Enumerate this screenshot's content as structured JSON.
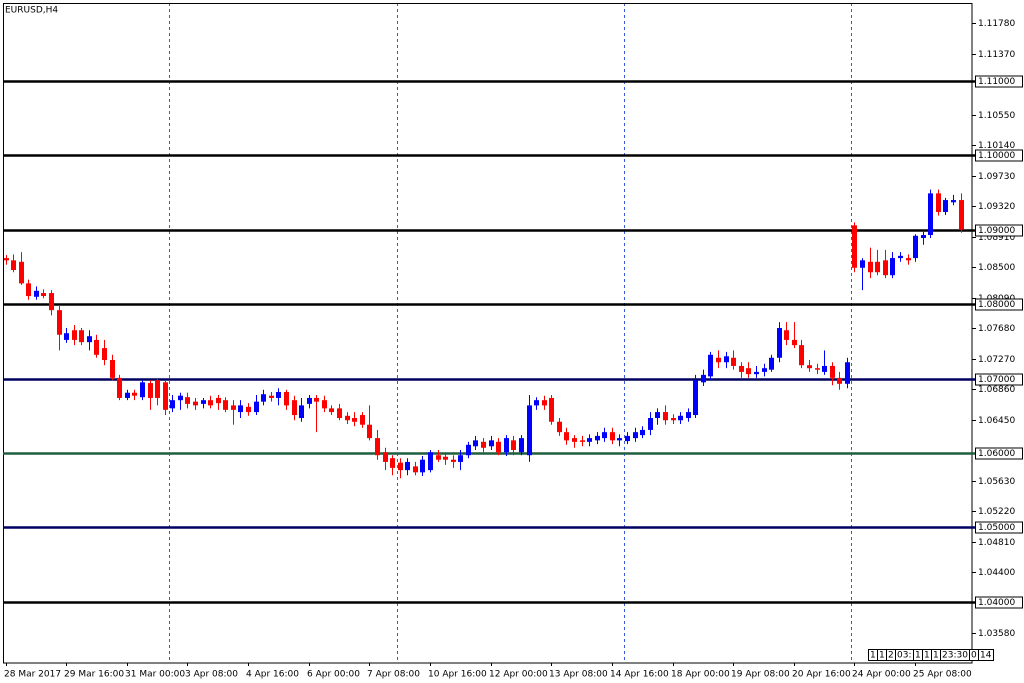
{
  "chart_data": {
    "type": "candlestick",
    "title": "EURUSD,H4",
    "categories": [
      "28 Mar 2017",
      null,
      null,
      null,
      null,
      null,
      null,
      null,
      "29 Mar 16:00",
      null,
      null,
      null,
      null,
      null,
      null,
      null,
      "31 Mar 00:00",
      null,
      null,
      null,
      null,
      null,
      null,
      null,
      "3 Apr 08:00",
      null,
      null,
      null,
      null,
      null,
      null,
      null,
      "4 Apr 16:00",
      null,
      null,
      null,
      null,
      null,
      null,
      null,
      "6 Apr 00:00",
      null,
      null,
      null,
      null,
      null,
      null,
      null,
      "7 Apr 08:00",
      null,
      null,
      null,
      null,
      null,
      null,
      null,
      "10 Apr 16:00",
      null,
      null,
      null,
      null,
      null,
      null,
      null,
      "12 Apr 00:00",
      null,
      null,
      null,
      null,
      null,
      null,
      null,
      "13 Apr 08:00",
      null,
      null,
      null,
      null,
      null,
      null,
      null,
      "14 Apr 16:00",
      null,
      null,
      null,
      null,
      null,
      null,
      null,
      "18 Apr 00:00",
      null,
      null,
      null,
      null,
      null,
      null,
      null,
      "19 Apr 08:00",
      null,
      null,
      null,
      null,
      null,
      null,
      null,
      "20 Apr 16:00",
      null,
      null,
      null,
      null,
      null,
      null,
      null,
      "24 Apr 00:00",
      null,
      null,
      null,
      null,
      null,
      null,
      null,
      "25 Apr 08:00",
      null,
      null,
      null,
      null,
      null,
      null
    ],
    "open": [
      1.0862,
      1.0859,
      1.0857,
      1.0828,
      1.081,
      1.0815,
      1.0815,
      1.0792,
      1.0752,
      1.0765,
      1.0765,
      1.0749,
      1.0752,
      1.0741,
      1.0725,
      1.0701,
      1.0674,
      1.0681,
      1.0675,
      1.0694,
      1.0698,
      1.0695,
      1.066,
      1.0671,
      1.0675,
      1.0669,
      1.0666,
      1.0671,
      1.0674,
      1.0671,
      1.0664,
      1.0655,
      1.0662,
      1.0655,
      1.0669,
      1.0677,
      1.0674,
      1.0682,
      1.0671,
      1.0647,
      1.0666,
      1.0674,
      1.0671,
      1.066,
      1.066,
      1.065,
      1.0647,
      1.0651,
      1.0638,
      1.062,
      1.0601,
      1.0593,
      1.0587,
      1.0577,
      1.0582,
      1.0574,
      1.0577,
      1.0597,
      1.0595,
      1.0591,
      1.0588,
      1.0597,
      1.0609,
      1.0615,
      1.0609,
      1.0615,
      1.0601,
      1.0617,
      1.0601,
      1.0597,
      1.0664,
      1.0671,
      1.0674,
      1.0642,
      1.0628,
      1.062,
      1.0617,
      1.0615,
      1.0617,
      1.062,
      1.0628,
      1.0617,
      1.0616,
      1.062,
      1.0624,
      1.0631,
      1.0647,
      1.0655,
      1.0647,
      1.0644,
      1.0647,
      1.0651,
      1.0695,
      1.0703,
      1.0728,
      1.0722,
      1.0728,
      1.0717,
      1.0714,
      1.0706,
      1.0709,
      1.0712,
      1.0728,
      1.0765,
      1.0752,
      1.0745,
      1.0718,
      1.0714,
      1.0709,
      1.0717,
      1.0701,
      1.0693,
      1.0906,
      1.0849,
      1.0857,
      1.0857,
      1.0859,
      1.0839,
      1.0862,
      1.0862,
      1.0862,
      1.0889,
      1.0893,
      1.0949,
      1.0924,
      1.0937,
      1.094
    ],
    "high": [
      1.0866,
      1.0867,
      1.087,
      1.0833,
      1.0824,
      1.082,
      1.0819,
      1.0799,
      1.0768,
      1.0772,
      1.0768,
      1.0765,
      1.0759,
      1.0752,
      1.0732,
      1.0705,
      1.0685,
      1.0685,
      1.0698,
      1.0698,
      1.0701,
      1.0698,
      1.0678,
      1.0681,
      1.0681,
      1.0674,
      1.0674,
      1.0677,
      1.0678,
      1.0675,
      1.0671,
      1.0671,
      1.0667,
      1.0678,
      1.0685,
      1.0682,
      1.0687,
      1.0685,
      1.0677,
      1.0674,
      1.0678,
      1.0678,
      1.0677,
      1.0664,
      1.0666,
      1.0655,
      1.0655,
      1.0655,
      1.0664,
      1.0631,
      1.0607,
      1.0597,
      1.0593,
      1.0593,
      1.0588,
      1.0596,
      1.0604,
      1.0604,
      1.0601,
      1.0597,
      1.0604,
      1.0615,
      1.0623,
      1.062,
      1.0623,
      1.062,
      1.0624,
      1.0623,
      1.0624,
      1.0678,
      1.0675,
      1.0677,
      1.0678,
      1.0647,
      1.0634,
      1.0624,
      1.0623,
      1.0625,
      1.0628,
      1.0634,
      1.0634,
      1.0625,
      1.0628,
      1.0634,
      1.0636,
      1.0655,
      1.066,
      1.0664,
      1.0652,
      1.0655,
      1.066,
      1.0705,
      1.0712,
      1.0736,
      1.0738,
      1.0736,
      1.0738,
      1.0722,
      1.0722,
      1.0717,
      1.072,
      1.0732,
      1.0776,
      1.0776,
      1.0776,
      1.0752,
      1.0725,
      1.072,
      1.0738,
      1.0722,
      1.0709,
      1.0728,
      1.091,
      1.0862,
      1.0876,
      1.0873,
      1.0873,
      1.087,
      1.087,
      1.0867,
      1.0894,
      1.09,
      1.0954,
      1.0954,
      1.0943,
      1.0947,
      1.0949
    ],
    "low": [
      1.0853,
      1.0843,
      1.0826,
      1.0806,
      1.0806,
      1.0808,
      1.0785,
      1.0738,
      1.0748,
      1.0745,
      1.0745,
      1.0738,
      1.0728,
      1.0718,
      1.0698,
      1.0671,
      1.0671,
      1.0671,
      1.0671,
      1.0658,
      1.0664,
      1.0651,
      1.0655,
      1.0658,
      1.066,
      1.0658,
      1.066,
      1.066,
      1.0658,
      1.0655,
      1.0638,
      1.0647,
      1.065,
      1.0651,
      1.0664,
      1.0669,
      1.0664,
      1.0658,
      1.0644,
      1.0642,
      1.066,
      1.0628,
      1.0655,
      1.0651,
      1.0644,
      1.0639,
      1.0636,
      1.0634,
      1.0617,
      1.0591,
      1.0577,
      1.057,
      1.0566,
      1.057,
      1.057,
      1.0569,
      1.0574,
      1.0588,
      1.0584,
      1.058,
      1.0577,
      1.0593,
      1.0604,
      1.0601,
      1.0604,
      1.0597,
      1.0596,
      1.0597,
      1.0597,
      1.0588,
      1.0658,
      1.0658,
      1.0638,
      1.0623,
      1.0611,
      1.0607,
      1.0609,
      1.0609,
      1.0612,
      1.0615,
      1.0612,
      1.0609,
      1.0612,
      1.0615,
      1.062,
      1.0624,
      1.0638,
      1.0638,
      1.0639,
      1.0639,
      1.0642,
      1.0647,
      1.069,
      1.0698,
      1.0714,
      1.0714,
      1.0712,
      1.0701,
      1.0701,
      1.0701,
      1.0703,
      1.0709,
      1.0722,
      1.0745,
      1.0741,
      1.0714,
      1.0709,
      1.0706,
      1.0705,
      1.0691,
      1.0685,
      1.0687,
      1.0843,
      1.0819,
      1.0835,
      1.0839,
      1.0835,
      1.0835,
      1.0857,
      1.0853,
      1.0857,
      1.088,
      1.0889,
      1.0919,
      1.092,
      1.0933,
      1.0896
    ],
    "close": [
      1.0859,
      1.0846,
      1.0828,
      1.0811,
      1.0818,
      1.0811,
      1.0792,
      1.0759,
      1.0761,
      1.0752,
      1.0749,
      1.0757,
      1.0732,
      1.0725,
      1.0701,
      1.0674,
      1.0681,
      1.0677,
      1.0695,
      1.0674,
      1.0674,
      1.0658,
      1.0671,
      1.0677,
      1.0666,
      1.0664,
      1.0671,
      1.0664,
      1.0667,
      1.0658,
      1.0658,
      1.0664,
      1.0655,
      1.0669,
      1.0679,
      1.0674,
      1.0682,
      1.0664,
      1.0651,
      1.0664,
      1.0674,
      1.0669,
      1.066,
      1.0655,
      1.0647,
      1.0644,
      1.0642,
      1.0638,
      1.062,
      1.0597,
      1.0588,
      1.058,
      1.0577,
      1.0588,
      1.0574,
      1.0591,
      1.0601,
      1.0591,
      1.0591,
      1.0588,
      1.0597,
      1.0611,
      1.0617,
      1.0607,
      1.0617,
      1.0601,
      1.062,
      1.0604,
      1.062,
      1.0664,
      1.0671,
      1.0664,
      1.0642,
      1.0628,
      1.0617,
      1.0615,
      1.0615,
      1.062,
      1.0623,
      1.0628,
      1.0617,
      1.062,
      1.0623,
      1.0628,
      1.0631,
      1.0647,
      1.0655,
      1.0644,
      1.0644,
      1.065,
      1.0655,
      1.0698,
      1.0705,
      1.0732,
      1.0722,
      1.073,
      1.0717,
      1.0709,
      1.0706,
      1.0709,
      1.0714,
      1.0728,
      1.0768,
      1.0752,
      1.0745,
      1.0718,
      1.0714,
      1.0712,
      1.0717,
      1.0701,
      1.0693,
      1.0722,
      1.0849,
      1.0859,
      1.0843,
      1.0843,
      1.0839,
      1.0862,
      1.0865,
      1.0859,
      1.0892,
      1.0893,
      1.0949,
      1.0924,
      1.094,
      1.094,
      1.09
    ],
    "up_color": "#0000ff",
    "down_color": "#ff0000",
    "ylim": [
      1.03177,
      1.12049
    ],
    "yticks": [
      {
        "value": 1.1178,
        "label": "1.11780"
      },
      {
        "value": 1.1137,
        "label": "1.11370"
      },
      {
        "value": 1.1055,
        "label": "1.10550"
      },
      {
        "value": 1.1014,
        "label": "1.10140"
      },
      {
        "value": 1.0973,
        "label": "1.09730"
      },
      {
        "value": 1.0932,
        "label": "1.09320"
      },
      {
        "value": 1.0891,
        "label": "1.08910"
      },
      {
        "value": 1.085,
        "label": "1.08500"
      },
      {
        "value": 1.0809,
        "label": "1.08090"
      },
      {
        "value": 1.0768,
        "label": "1.07680"
      },
      {
        "value": 1.0727,
        "label": "1.07270"
      },
      {
        "value": 1.0686,
        "label": "1.06860"
      },
      {
        "value": 1.0645,
        "label": "1.06450"
      },
      {
        "value": 1.0563,
        "label": "1.05630"
      },
      {
        "value": 1.0522,
        "label": "1.05220"
      },
      {
        "value": 1.0481,
        "label": "1.04810"
      },
      {
        "value": 1.044,
        "label": "1.04400"
      },
      {
        "value": 1.0358,
        "label": "1.03580"
      }
    ],
    "levels": [
      {
        "value": 1.11,
        "label": "1.11000",
        "color": "#000000"
      },
      {
        "value": 1.1,
        "label": "1.10000",
        "color": "#000000"
      },
      {
        "value": 1.09,
        "label": "1.09000",
        "color": "#000000"
      },
      {
        "value": 1.08,
        "label": "1.08000",
        "color": "#000000"
      },
      {
        "value": 1.07,
        "label": "1.07000",
        "color": "#000060"
      },
      {
        "value": 1.06,
        "label": "1.06000",
        "color": "#1f5f3f"
      },
      {
        "value": 1.05,
        "label": "1.05000",
        "color": "#000060"
      },
      {
        "value": 1.04,
        "label": "1.04000",
        "color": "#000000"
      }
    ],
    "time_boxes": [
      "1",
      "1",
      "2",
      "03:",
      "1",
      "1",
      "1",
      "23:30",
      "0",
      "14"
    ]
  }
}
